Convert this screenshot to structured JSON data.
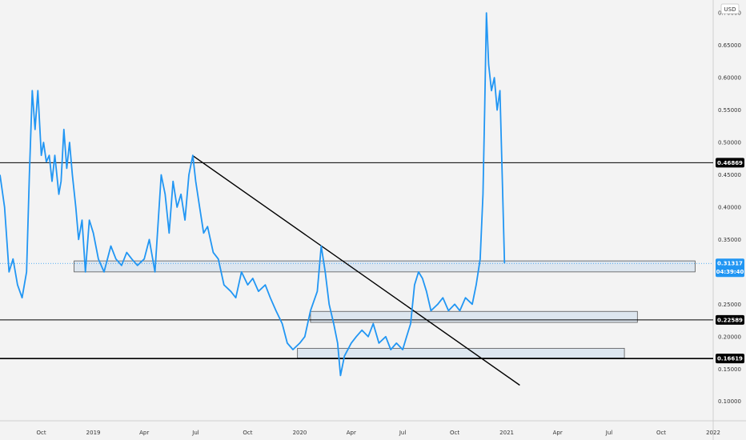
{
  "chart_data": {
    "type": "line",
    "currency_label": "USD",
    "ylim": [
      0.07,
      0.72
    ],
    "y_ticks": [
      0.1,
      0.15,
      0.2,
      0.25,
      0.3,
      0.35,
      0.4,
      0.45,
      0.5,
      0.55,
      0.6,
      0.65,
      0.7
    ],
    "y_tick_labels": [
      "0.10000",
      "0.15000",
      "0.20000",
      "0.25000",
      "0.30000",
      "0.35000",
      "0.40000",
      "0.45000",
      "0.50000",
      "0.55000",
      "0.60000",
      "0.65000",
      "0.70000"
    ],
    "x_range": [
      "2018-07-20",
      "2022-01-01"
    ],
    "x_ticks": [
      {
        "date": "2018-10-01",
        "label": "Oct"
      },
      {
        "date": "2019-01-01",
        "label": "2019"
      },
      {
        "date": "2019-04-01",
        "label": "Apr"
      },
      {
        "date": "2019-07-01",
        "label": "Jul"
      },
      {
        "date": "2019-10-01",
        "label": "Oct"
      },
      {
        "date": "2020-01-01",
        "label": "2020"
      },
      {
        "date": "2020-04-01",
        "label": "Apr"
      },
      {
        "date": "2020-07-01",
        "label": "Jul"
      },
      {
        "date": "2020-10-01",
        "label": "Oct"
      },
      {
        "date": "2021-01-01",
        "label": "2021"
      },
      {
        "date": "2021-04-01",
        "label": "Apr"
      },
      {
        "date": "2021-07-01",
        "label": "Jul"
      },
      {
        "date": "2021-10-01",
        "label": "Oct"
      },
      {
        "date": "2022-01-01",
        "label": "2022"
      }
    ],
    "series": [
      {
        "color": "#2196f3",
        "x": [
          "2018-07-20",
          "2018-07-28",
          "2018-08-05",
          "2018-08-12",
          "2018-08-20",
          "2018-08-28",
          "2018-09-05",
          "2018-09-10",
          "2018-09-15",
          "2018-09-20",
          "2018-09-25",
          "2018-10-01",
          "2018-10-05",
          "2018-10-10",
          "2018-10-15",
          "2018-10-20",
          "2018-10-25",
          "2018-11-01",
          "2018-11-05",
          "2018-11-10",
          "2018-11-15",
          "2018-11-20",
          "2018-11-25",
          "2018-12-01",
          "2018-12-06",
          "2018-12-12",
          "2018-12-18",
          "2018-12-25",
          "2019-01-01",
          "2019-01-10",
          "2019-01-20",
          "2019-02-01",
          "2019-02-10",
          "2019-02-20",
          "2019-03-01",
          "2019-03-10",
          "2019-03-20",
          "2019-04-01",
          "2019-04-10",
          "2019-04-20",
          "2019-05-01",
          "2019-05-08",
          "2019-05-15",
          "2019-05-22",
          "2019-05-29",
          "2019-06-05",
          "2019-06-12",
          "2019-06-19",
          "2019-06-26",
          "2019-07-01",
          "2019-07-08",
          "2019-07-15",
          "2019-07-22",
          "2019-08-01",
          "2019-08-10",
          "2019-08-20",
          "2019-09-01",
          "2019-09-10",
          "2019-09-20",
          "2019-10-01",
          "2019-10-10",
          "2019-10-20",
          "2019-11-01",
          "2019-11-10",
          "2019-11-20",
          "2019-12-01",
          "2019-12-10",
          "2019-12-20",
          "2020-01-01",
          "2020-01-10",
          "2020-01-20",
          "2020-02-01",
          "2020-02-08",
          "2020-02-15",
          "2020-02-22",
          "2020-03-01",
          "2020-03-08",
          "2020-03-13",
          "2020-03-20",
          "2020-04-01",
          "2020-04-10",
          "2020-04-20",
          "2020-05-01",
          "2020-05-10",
          "2020-05-20",
          "2020-06-01",
          "2020-06-10",
          "2020-06-20",
          "2020-07-01",
          "2020-07-08",
          "2020-07-15",
          "2020-07-22",
          "2020-07-29",
          "2020-08-05",
          "2020-08-12",
          "2020-08-20",
          "2020-09-01",
          "2020-09-10",
          "2020-09-20",
          "2020-10-01",
          "2020-10-10",
          "2020-10-20",
          "2020-11-01",
          "2020-11-08",
          "2020-11-15",
          "2020-11-20",
          "2020-11-23",
          "2020-11-26",
          "2020-11-30",
          "2020-12-05",
          "2020-12-10",
          "2020-12-15",
          "2020-12-20",
          "2020-12-24",
          "2020-12-28"
        ],
        "y": [
          0.45,
          0.4,
          0.3,
          0.32,
          0.28,
          0.26,
          0.3,
          0.45,
          0.58,
          0.52,
          0.58,
          0.48,
          0.5,
          0.47,
          0.48,
          0.44,
          0.48,
          0.42,
          0.44,
          0.52,
          0.46,
          0.5,
          0.45,
          0.4,
          0.35,
          0.38,
          0.3,
          0.38,
          0.36,
          0.32,
          0.3,
          0.34,
          0.32,
          0.31,
          0.33,
          0.32,
          0.31,
          0.32,
          0.35,
          0.3,
          0.45,
          0.42,
          0.36,
          0.44,
          0.4,
          0.42,
          0.38,
          0.45,
          0.48,
          0.44,
          0.4,
          0.36,
          0.37,
          0.33,
          0.32,
          0.28,
          0.27,
          0.26,
          0.3,
          0.28,
          0.29,
          0.27,
          0.28,
          0.26,
          0.24,
          0.22,
          0.19,
          0.18,
          0.19,
          0.2,
          0.24,
          0.27,
          0.34,
          0.3,
          0.25,
          0.22,
          0.19,
          0.14,
          0.17,
          0.19,
          0.2,
          0.21,
          0.2,
          0.22,
          0.19,
          0.2,
          0.18,
          0.19,
          0.18,
          0.2,
          0.22,
          0.28,
          0.3,
          0.29,
          0.27,
          0.24,
          0.25,
          0.26,
          0.24,
          0.25,
          0.24,
          0.26,
          0.25,
          0.28,
          0.32,
          0.42,
          0.55,
          0.7,
          0.62,
          0.58,
          0.6,
          0.55,
          0.58,
          0.45,
          0.31317
        ]
      }
    ],
    "levels": [
      {
        "value": 0.46869,
        "label": "0.46869"
      },
      {
        "value": 0.22589,
        "label": "0.22589"
      },
      {
        "value": 0.16619,
        "label": "0.16619"
      }
    ],
    "current_price": {
      "value": 0.31317,
      "label": "0.31317",
      "countdown": "04:39:40",
      "color": "#2196f3"
    },
    "trendline": {
      "x": [
        "2019-06-25",
        "2021-01-24"
      ],
      "y": [
        0.48,
        0.125
      ]
    },
    "zones": [
      {
        "x": [
          "2018-11-28",
          "2021-11-30"
        ],
        "y": [
          0.3,
          0.317
        ]
      },
      {
        "x": [
          "2020-01-20",
          "2021-08-20"
        ],
        "y": [
          0.222,
          0.239
        ]
      },
      {
        "x": [
          "2019-12-28",
          "2021-07-28"
        ],
        "y": [
          0.167,
          0.182
        ]
      }
    ],
    "grid": false
  }
}
